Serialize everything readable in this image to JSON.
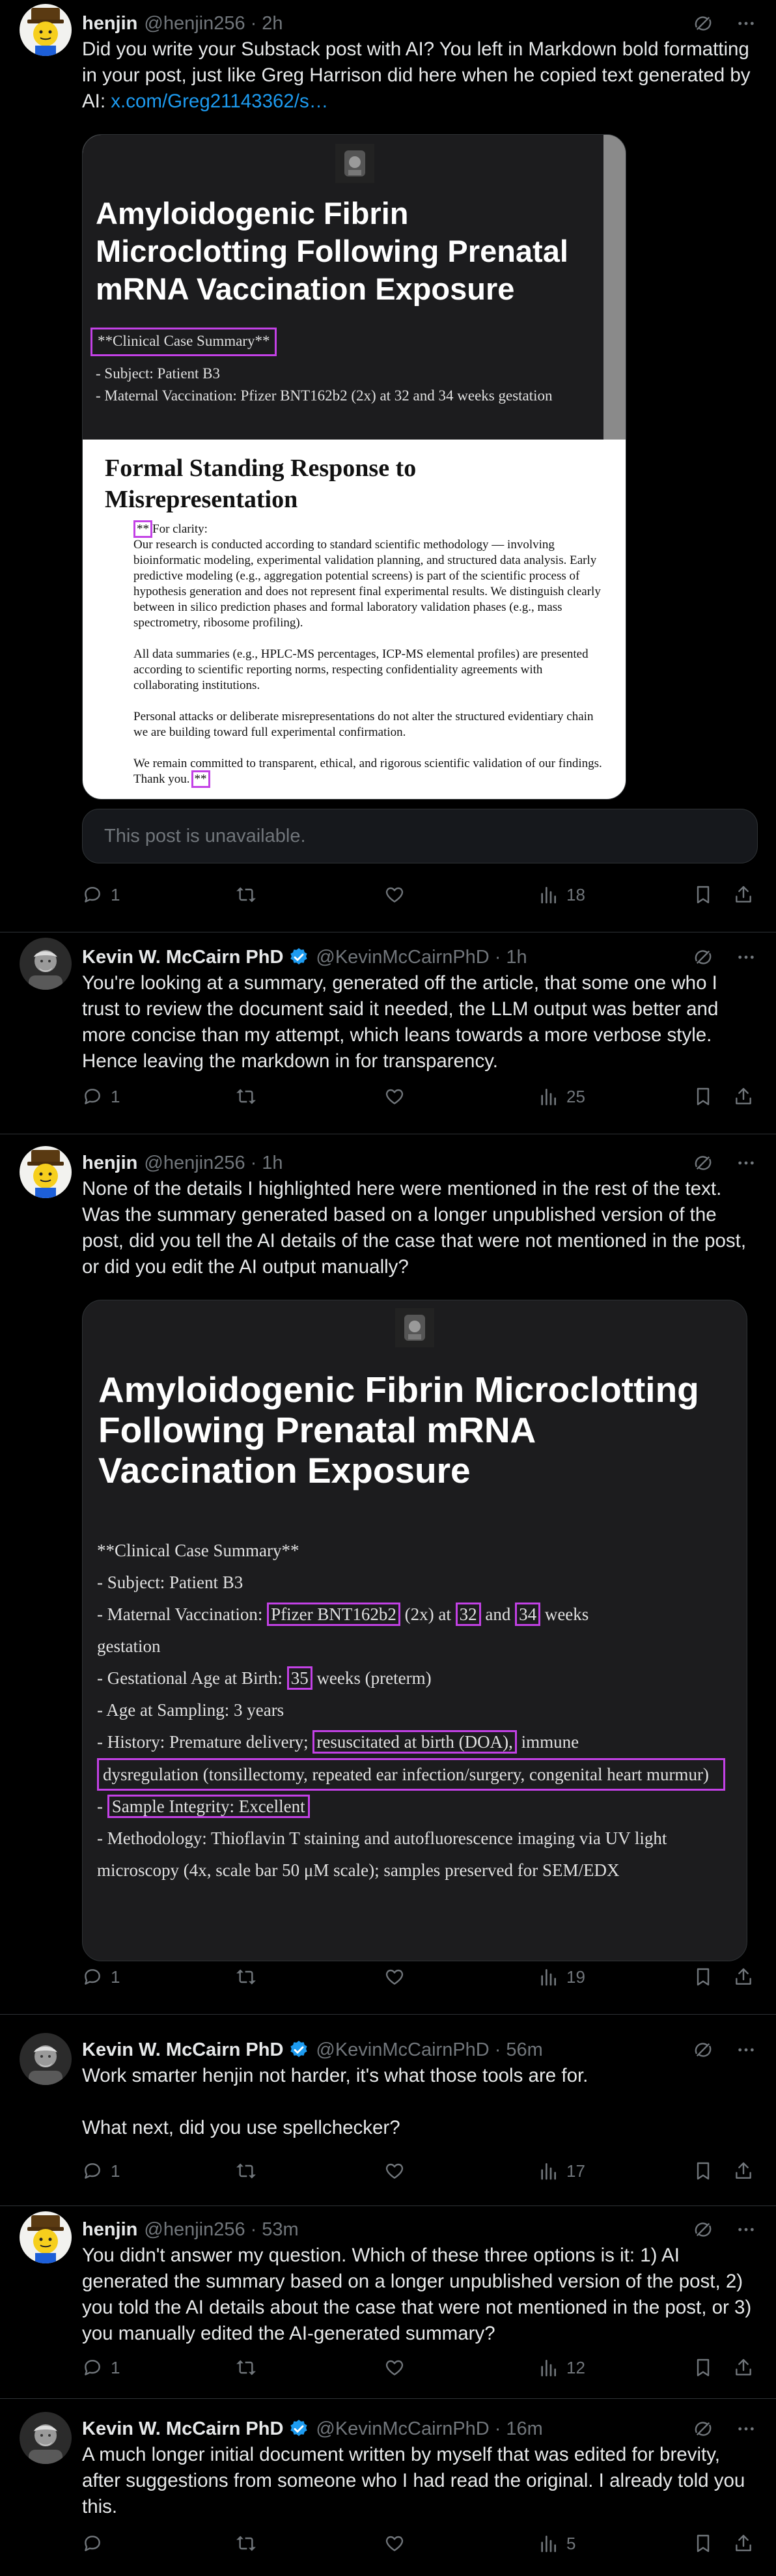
{
  "posts": [
    {
      "author": "henjin",
      "handle": "@henjin256",
      "time": "2h",
      "text_before_link": "Did you write your Substack post with AI? You left in Markdown bold formatting in your post, just like Greg Harrison did here when he copied text generated by AI: ",
      "link": "x.com/Greg21143362/s…",
      "media": {
        "title": "Amyloidogenic Fibrin Microclotting Following Prenatal mRNA Vaccination Exposure",
        "case_summary": "**Clinical Case Summary**",
        "subject": "- Subject: Patient B3",
        "maternal": "- Maternal Vaccination: Pfizer BNT162b2 (2x) at 32 and 34 weeks gestation",
        "response_title": "Formal Standing Response to Misrepresentation",
        "stars_open": "**",
        "clarity": "For clarity:",
        "p1": "Our research is conducted according to standard scientific methodology — involving bioinformatic modeling, experimental validation planning, and structured data analysis. Early predictive modeling (e.g., aggregation potential screens) is part of the scientific process of hypothesis generation and does not represent final experimental results. We distinguish clearly between in silico prediction phases and formal laboratory validation phases (e.g., mass spectrometry, ribosome profiling).",
        "p2": "All data summaries (e.g., HPLC-MS percentages, ICP-MS elemental profiles) are presented according to scientific reporting norms, respecting confidentiality agreements with collaborating institutions.",
        "p3": "Personal attacks or deliberate misrepresentations do not alter the structured evidentiary chain we are building toward full experimental confirmation.",
        "p4": "We remain committed to transparent, ethical, and rigorous scientific validation of our findings. Thank you.",
        "stars_close": "**"
      },
      "unavailable": "This post is unavailable.",
      "replies": "1",
      "reposts": "",
      "likes": "",
      "views": "18"
    },
    {
      "author": "Kevin W. McCairn PhD",
      "handle": "@KevinMcCairnPhD",
      "time": "1h",
      "text": "You're looking at a summary, generated off the article, that some one who I trust to review the document said it needed, the LLM output was better and more concise than my attempt, which leans towards a more verbose style. Hence leaving the markdown in for transparency.",
      "replies": "1",
      "views": "25"
    },
    {
      "author": "henjin",
      "handle": "@henjin256",
      "time": "1h",
      "text": "None of the details I highlighted here were mentioned in the rest of the text. Was the summary generated based on a longer unpublished version of the post, did you tell the AI details of the case that were not mentioned in the post, or did you edit the AI output manually?",
      "media": {
        "title": "Amyloidogenic Fibrin Microclotting Following Prenatal mRNA Vaccination Exposure",
        "case_summary": "**Clinical Case Summary**",
        "subject": "- Subject: Patient B3",
        "mv_prefix": "- Maternal Vaccination: ",
        "mv_vaccine": "Pfizer BNT162b2",
        "mv_mid1": " (2x) at ",
        "mv_week1": "32",
        "mv_mid2": " and ",
        "mv_week2": "34",
        "mv_suffix": " weeks",
        "gestation": "gestation",
        "ga_prefix": "- Gestational Age at Birth: ",
        "ga_value": "35",
        "ga_suffix": " weeks (preterm)",
        "age": "- Age at Sampling: 3 years",
        "hist_prefix": "- History: Premature delivery; ",
        "hist_doa": "resuscitated at birth (DOA),",
        "hist_immune": " immune",
        "hist_box": "dysregulation (tonsillectomy, repeated ear infection/surgery, congenital heart murmur)",
        "si_prefix": "- ",
        "si_box": "Sample Integrity: Excellent",
        "method": "- Methodology: Thioflavin T staining and autofluorescence imaging via UV light microscopy (4x, scale bar 50 μM scale); samples preserved for SEM/EDX"
      },
      "replies": "1",
      "views": "19"
    },
    {
      "author": "Kevin W. McCairn PhD",
      "handle": "@KevinMcCairnPhD",
      "time": "56m",
      "text_line1": "Work smarter henjin not harder, it's what those tools are for.",
      "text_line2": "What next, did you use spellchecker?",
      "replies": "1",
      "views": "17"
    },
    {
      "author": "henjin",
      "handle": "@henjin256",
      "time": "53m",
      "text": "You didn't answer my question. Which of these three options is it: 1) AI generated the summary based on a longer unpublished version of the post, 2) you told the AI details about the case that were not mentioned in the post, or 3) you manually edited the AI-generated summary?",
      "replies": "1",
      "views": "12"
    },
    {
      "author": "Kevin W. McCairn PhD",
      "handle": "@KevinMcCairnPhD",
      "time": "16m",
      "text": "A much longer initial document written by myself  that was edited for brevity, after suggestions from someone who I had read the original. I already told you this.",
      "replies": "",
      "views": "5"
    }
  ],
  "separator_dot": "·",
  "colors": {
    "background": "#000000",
    "text": "#e7e9ea",
    "muted": "#71767b",
    "link": "#1d9bf0",
    "verified": "#1d9bf0",
    "highlight_box": "#c341e6"
  },
  "icons": [
    "reply-icon",
    "repost-icon",
    "like-icon",
    "views-icon",
    "bookmark-icon",
    "share-icon",
    "grok-icon",
    "more-icon",
    "verified-badge-icon"
  ]
}
